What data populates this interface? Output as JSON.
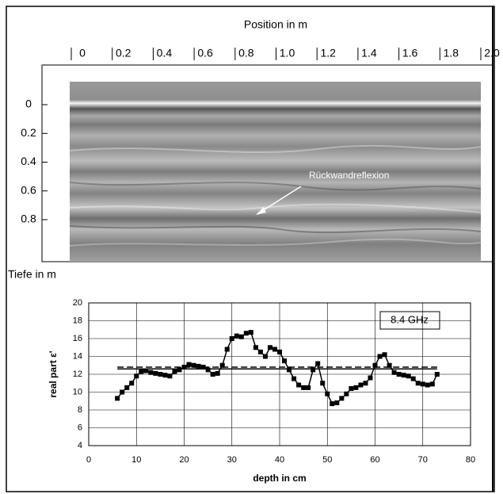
{
  "chart_data": [
    {
      "type": "image",
      "title": "Position in m",
      "y_label": "Tiefe in m",
      "annotation": "Rückwandreflexion",
      "xlim": [
        0,
        2
      ],
      "xticks": [
        0,
        0.2,
        0.4,
        0.6,
        0.8,
        {
          "value": 1,
          "label": "1.0"
        },
        1.2,
        1.4,
        1.6,
        1.8,
        {
          "value": 2,
          "label": "2.0"
        }
      ],
      "ylim": [
        0,
        0.8
      ],
      "yticks": [
        0,
        0.2,
        0.4,
        0.6,
        0.8
      ]
    },
    {
      "type": "line",
      "y_label": "real part ε'",
      "x_label": "depth in cm",
      "annotation": "8.4 GHz",
      "xlim": [
        0,
        80
      ],
      "xticks": [
        0,
        10,
        20,
        30,
        40,
        50,
        60,
        70,
        80
      ],
      "ylim": [
        4,
        20
      ],
      "yticks": [
        4,
        6,
        8,
        10,
        12,
        14,
        16,
        18,
        20
      ],
      "grid": true,
      "x": [
        6,
        7,
        8,
        9,
        10,
        11,
        12,
        13,
        14,
        15,
        16,
        17,
        18,
        19,
        20,
        21,
        22,
        23,
        24,
        25,
        26,
        27,
        28,
        29,
        30,
        31,
        32,
        33,
        34,
        35,
        36,
        37,
        38,
        39,
        40,
        41,
        42,
        43,
        44,
        45,
        46,
        47,
        48,
        49,
        50,
        51,
        52,
        53,
        54,
        55,
        56,
        57,
        58,
        59,
        60,
        61,
        62,
        63,
        64,
        65,
        66,
        67,
        68,
        69,
        70,
        71,
        72,
        73
      ],
      "series": [
        {
          "color": "#000000",
          "values": [
            9.3,
            10,
            10.5,
            11,
            11.8,
            12.3,
            12.4,
            12.2,
            12.1,
            12,
            11.9,
            11.8,
            12.3,
            12.5,
            12.8,
            13.1,
            13,
            12.9,
            12.8,
            12.5,
            12,
            12.1,
            13,
            14.8,
            16,
            16.3,
            16.2,
            16.6,
            16.7,
            15,
            14.5,
            14,
            15,
            14.8,
            14.5,
            13.5,
            12.5,
            11.5,
            10.8,
            10.5,
            10.5,
            12.5,
            13.2,
            11,
            9.8,
            8.7,
            8.8,
            9.3,
            9.8,
            10.4,
            10.5,
            10.8,
            11,
            11.6,
            13,
            14,
            14.2,
            13,
            12.2,
            12,
            11.9,
            11.8,
            11.5,
            11,
            10.9,
            10.8,
            10.9,
            12
          ]
        }
      ],
      "reference_lines": [
        {
          "value": 12.8,
          "style": "dashed"
        },
        {
          "value": 12.6,
          "style": "solid"
        }
      ]
    }
  ]
}
